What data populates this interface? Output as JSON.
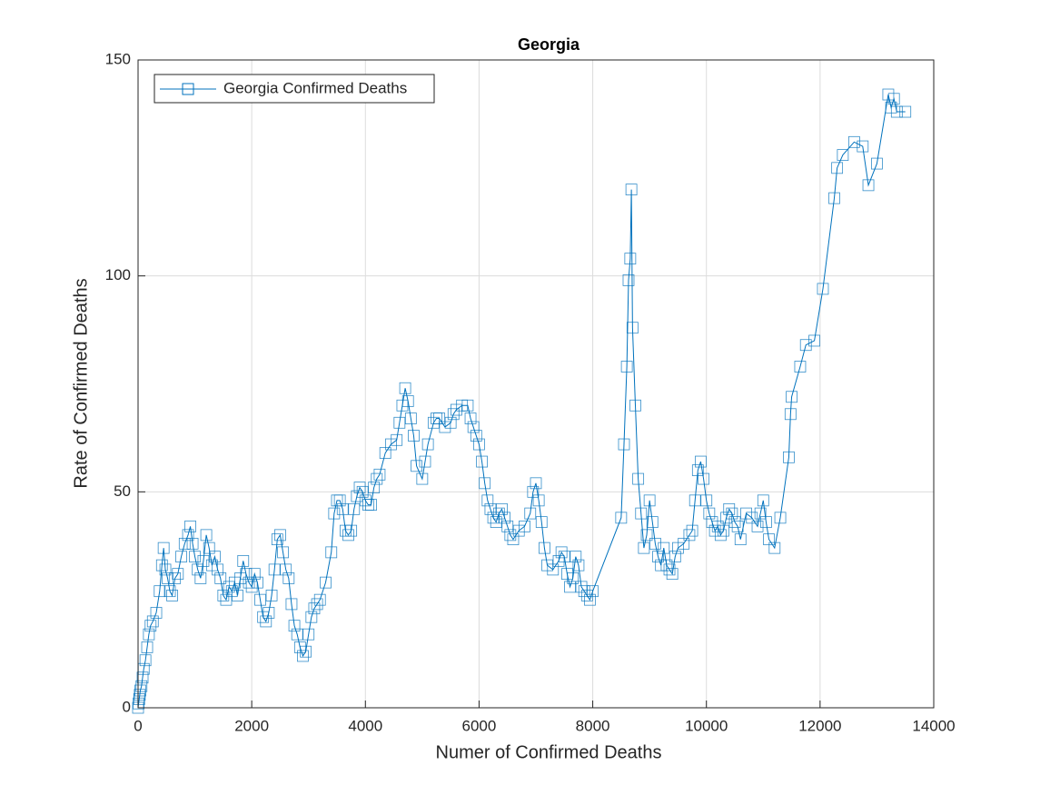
{
  "chart_data": {
    "type": "line",
    "title": "Georgia",
    "x_label": "Numer of Confirmed Deaths",
    "y_label": "Rate of Confirmed Deaths",
    "xlim": [
      0,
      14000
    ],
    "ylim": [
      0,
      150
    ],
    "xticks": [
      0,
      2000,
      4000,
      6000,
      8000,
      10000,
      12000,
      14000
    ],
    "yticks": [
      0,
      50,
      100,
      150
    ],
    "grid": true,
    "legend": "upper left",
    "marker": "square",
    "x": [
      0,
      10,
      20,
      30,
      40,
      60,
      80,
      100,
      130,
      160,
      190,
      220,
      260,
      320,
      380,
      420,
      450,
      480,
      520,
      560,
      600,
      650,
      700,
      760,
      820,
      880,
      920,
      960,
      1000,
      1050,
      1100,
      1150,
      1200,
      1250,
      1300,
      1350,
      1400,
      1450,
      1500,
      1550,
      1600,
      1650,
      1700,
      1750,
      1800,
      1850,
      1900,
      1950,
      2000,
      2050,
      2100,
      2150,
      2200,
      2250,
      2300,
      2350,
      2400,
      2450,
      2500,
      2550,
      2600,
      2650,
      2700,
      2750,
      2800,
      2850,
      2900,
      2950,
      3000,
      3050,
      3100,
      3150,
      3200,
      3300,
      3400,
      3450,
      3500,
      3550,
      3600,
      3650,
      3700,
      3750,
      3800,
      3850,
      3900,
      3950,
      4000,
      4050,
      4100,
      4150,
      4200,
      4250,
      4350,
      4450,
      4550,
      4600,
      4650,
      4700,
      4750,
      4800,
      4850,
      4900,
      5000,
      5050,
      5100,
      5200,
      5250,
      5300,
      5400,
      5500,
      5550,
      5600,
      5700,
      5800,
      5850,
      5900,
      5950,
      6000,
      6050,
      6100,
      6150,
      6200,
      6250,
      6300,
      6350,
      6400,
      6450,
      6500,
      6550,
      6600,
      6700,
      6800,
      6900,
      6950,
      7000,
      7050,
      7100,
      7150,
      7200,
      7300,
      7400,
      7450,
      7500,
      7550,
      7600,
      7650,
      7700,
      7750,
      7800,
      7850,
      7900,
      7950,
      8000,
      8500,
      8550,
      8600,
      8630,
      8660,
      8680,
      8700,
      8750,
      8800,
      8850,
      8900,
      8950,
      9000,
      9050,
      9100,
      9150,
      9200,
      9250,
      9300,
      9350,
      9400,
      9450,
      9500,
      9600,
      9700,
      9750,
      9800,
      9850,
      9900,
      9950,
      10000,
      10050,
      10100,
      10150,
      10200,
      10250,
      10300,
      10350,
      10400,
      10450,
      10500,
      10550,
      10600,
      10700,
      10800,
      10900,
      10950,
      11000,
      11050,
      11100,
      11200,
      11300,
      11450,
      11480,
      11500,
      11650,
      11750,
      11900,
      12050,
      12250,
      12300,
      12400,
      12600,
      12750,
      12850,
      13000,
      13200,
      13250,
      13300,
      13350,
      13500
    ],
    "series": [
      {
        "name": "Georgia Confirmed Deaths",
        "color": "#0072bd",
        "values": [
          0,
          1,
          2,
          3,
          4,
          5,
          7,
          9,
          11,
          14,
          17,
          19,
          20,
          22,
          27,
          33,
          37,
          32,
          30,
          27,
          26,
          30,
          31,
          35,
          38,
          40,
          42,
          38,
          35,
          32,
          30,
          34,
          40,
          37,
          33,
          35,
          32,
          30,
          26,
          25,
          28,
          27,
          29,
          26,
          30,
          34,
          31,
          29,
          28,
          31,
          29,
          25,
          21,
          20,
          22,
          26,
          32,
          39,
          40,
          36,
          32,
          30,
          24,
          19,
          17,
          14,
          12,
          13,
          17,
          21,
          23,
          24,
          25,
          29,
          36,
          45,
          48,
          48,
          46,
          41,
          40,
          41,
          46,
          49,
          51,
          50,
          48,
          47,
          47,
          51,
          53,
          54,
          59,
          61,
          62,
          66,
          70,
          74,
          71,
          67,
          63,
          56,
          53,
          57,
          61,
          66,
          67,
          67,
          65,
          66,
          68,
          69,
          70,
          70,
          67,
          65,
          63,
          61,
          57,
          52,
          48,
          46,
          44,
          43,
          45,
          46,
          44,
          42,
          40,
          39,
          41,
          42,
          45,
          50,
          52,
          48,
          43,
          37,
          33,
          32,
          34,
          36,
          35,
          31,
          28,
          30,
          35,
          33,
          28,
          27,
          26,
          25,
          27,
          44,
          61,
          79,
          99,
          104,
          120,
          88,
          70,
          53,
          45,
          37,
          40,
          48,
          43,
          38,
          35,
          33,
          37,
          33,
          32,
          31,
          35,
          37,
          38,
          40,
          41,
          48,
          55,
          57,
          53,
          48,
          45,
          43,
          41,
          42,
          40,
          41,
          44,
          46,
          45,
          43,
          42,
          39,
          45,
          44,
          42,
          45,
          48,
          43,
          39,
          37,
          44,
          58,
          68,
          72,
          79,
          84,
          85,
          97,
          118,
          125,
          128,
          131,
          130,
          121,
          126,
          142,
          139,
          141,
          138,
          138
        ]
      }
    ]
  }
}
